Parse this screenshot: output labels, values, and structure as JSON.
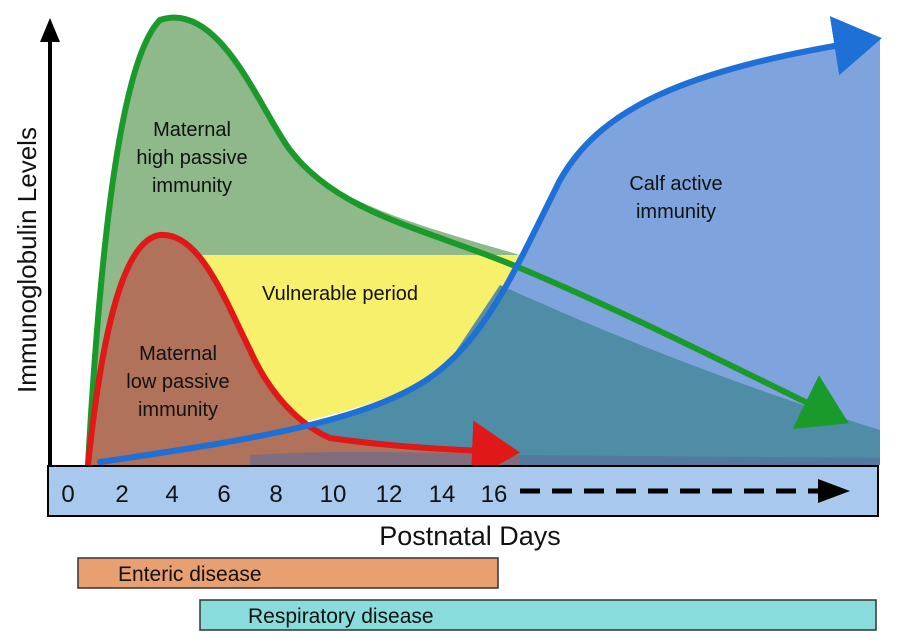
{
  "axes": {
    "y_label": "Immunoglobulin Levels",
    "x_label": "Postnatal Days",
    "ticks": [
      "0",
      "2",
      "4",
      "6",
      "8",
      "10",
      "12",
      "14",
      "16"
    ]
  },
  "regions": {
    "high_passive": [
      "Maternal",
      "high passive",
      "immunity"
    ],
    "low_passive": [
      "Maternal",
      "low passive",
      "immunity"
    ],
    "vulnerable": "Vulnerable period",
    "active": [
      "Calf active",
      "immunity"
    ]
  },
  "disease_bars": {
    "enteric": "Enteric disease",
    "respiratory": "Respiratory disease"
  },
  "colors": {
    "high_passive_line": "#1a9a2a",
    "high_passive_fill": "#8fb98a",
    "low_passive_line": "#e01818",
    "low_passive_fill": "#b0725a",
    "active_line": "#1e6fd6",
    "active_fill": "#7fa3dc",
    "vulnerable_fill": "#f7f06a",
    "overlap_fill": "#4b8aa0",
    "axis_strip": "#a9c8ee",
    "enteric_bar": "#e8a070",
    "respiratory_bar": "#88dcdc"
  }
}
